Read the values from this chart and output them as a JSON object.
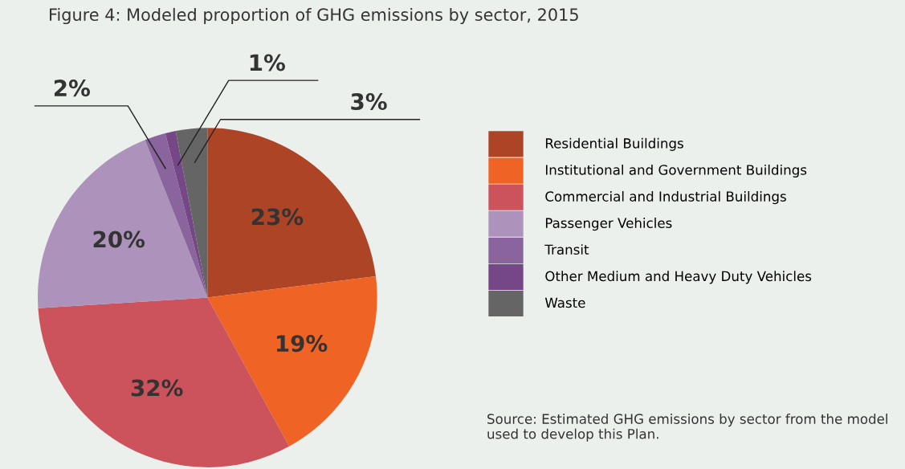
{
  "chart_data": {
    "type": "pie",
    "title": "Figure 4: Modeled proportion of GHG emissions by sector, 2015",
    "categories": [
      "Residential Buildings",
      "Institutional and Government Buildings",
      "Commercial and Industrial Buildings",
      "Passenger Vehicles",
      "Transit",
      "Other Medium and Heavy Duty Vehicles",
      "Waste"
    ],
    "values": [
      23,
      19,
      32,
      20,
      2,
      1,
      3
    ],
    "value_labels": [
      "23%",
      "19%",
      "32%",
      "20%",
      "2%",
      "1%",
      "3%"
    ],
    "colors": [
      "#ae4426",
      "#ef6325",
      "#cc525c",
      "#ad93bb",
      "#8a659d",
      "#764786",
      "#656565"
    ],
    "legend": "right",
    "annotations": [
      "Source: Estimated GHG emissions by sector from the model used to develop this Plan."
    ]
  }
}
